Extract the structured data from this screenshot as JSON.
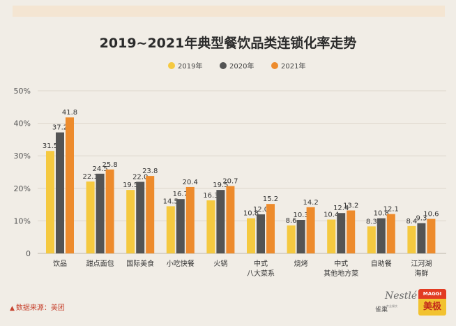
{
  "chart_data": {
    "type": "bar",
    "title": "2019~2021年典型餐饮品类连锁化率走势",
    "categories": [
      "饮品",
      "甜点面包",
      "国际美食",
      "小吃快餐",
      "火锅",
      "中式\n八大菜系",
      "烧烤",
      "中式\n其他地方菜",
      "自助餐",
      "江河湖\n海鲜"
    ],
    "series": [
      {
        "name": "2019年",
        "color": "#f5c940",
        "values": [
          31.5,
          22.1,
          19.5,
          14.5,
          16.3,
          10.8,
          8.6,
          10.4,
          8.3,
          8.4
        ]
      },
      {
        "name": "2020年",
        "color": "#545454",
        "values": [
          37.2,
          24.5,
          22.0,
          16.7,
          19.5,
          12.0,
          10.3,
          12.4,
          10.8,
          9.3
        ]
      },
      {
        "name": "2021年",
        "color": "#ed8b2c",
        "values": [
          41.8,
          25.8,
          23.8,
          20.4,
          20.7,
          15.2,
          14.2,
          13.2,
          12.1,
          10.6
        ]
      }
    ],
    "value_labels": [
      [
        "31.5",
        "37.2",
        "41.8"
      ],
      [
        "22.1",
        "24.5",
        "25.8"
      ],
      [
        "19.5",
        "22.0",
        "23.8"
      ],
      [
        "14.5",
        "16.7",
        "20.4"
      ],
      [
        "16.3",
        "19.5",
        "20.7"
      ],
      [
        "10.8",
        "12.0",
        "15.2"
      ],
      [
        "8.6",
        "10.3",
        "14.2"
      ],
      [
        "10.4",
        "12.4",
        "13.2"
      ],
      [
        "8.3",
        "10.8",
        "12.1"
      ],
      [
        "8.4",
        "9.3",
        "10.6"
      ]
    ],
    "yticks": [
      "0",
      "10%",
      "20%",
      "30%",
      "40%",
      "50%"
    ],
    "ylim": [
      0,
      50
    ],
    "legend_position": "top-center",
    "grid": true
  },
  "footer": {
    "source": "数据来源：美团",
    "marker": "▲"
  },
  "logos": {
    "nestle_brand": "Nestlé",
    "nestle_cn": "雀巢",
    "nestle_sub": "专业餐饮",
    "maggi_top": "MAGGI",
    "maggi_cn": "美极"
  }
}
